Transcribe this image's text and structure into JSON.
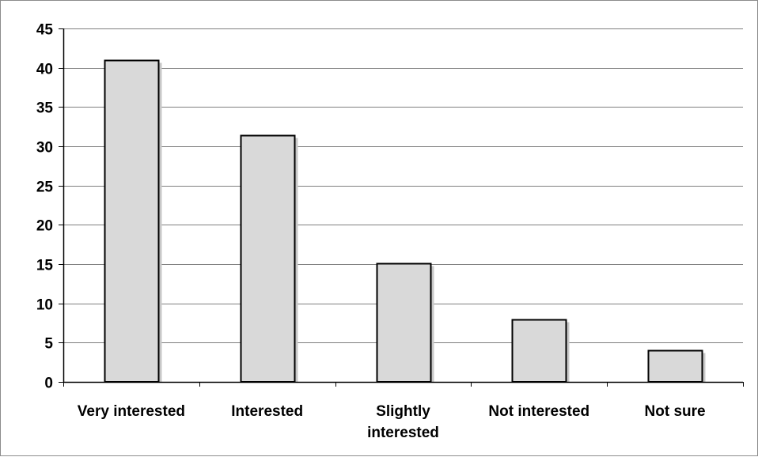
{
  "chart_data": {
    "type": "bar",
    "categories": [
      [
        "Very interested"
      ],
      [
        "Interested"
      ],
      [
        "Slightly",
        "interested"
      ],
      [
        "Not interested"
      ],
      [
        "Not sure"
      ]
    ],
    "values": [
      41,
      31.4,
      15.1,
      8,
      4
    ],
    "title": "",
    "xlabel": "",
    "ylabel": "",
    "ylim": [
      0,
      45
    ],
    "yticks": [
      "0",
      "5",
      "10",
      "15",
      "20",
      "25",
      "30",
      "35",
      "40",
      "45"
    ],
    "grid": true,
    "legend": "none",
    "colors": {
      "bar_fill": "#d9d9d9",
      "bar_stroke": "#000000",
      "bar_shadow": "#c8c8c8",
      "gridline": "#7f7f7f",
      "axis": "#000000"
    }
  }
}
